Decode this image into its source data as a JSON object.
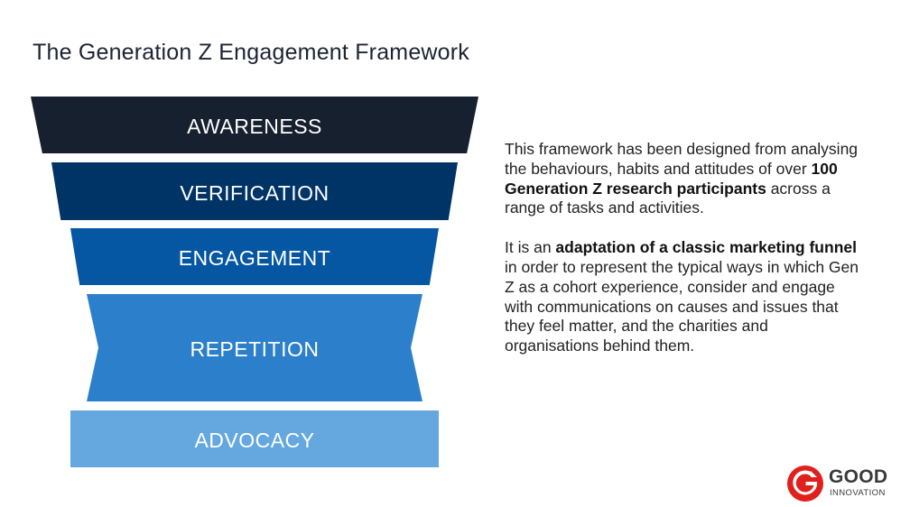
{
  "title": "The Generation Z Engagement Framework",
  "funnel": {
    "stages": [
      {
        "label": "AWARENESS",
        "color": "#17202e"
      },
      {
        "label": "VERIFICATION",
        "color": "#003466"
      },
      {
        "label": "ENGAGEMENT",
        "color": "#0556a3"
      },
      {
        "label": "REPETITION",
        "color": "#2b7fcb"
      },
      {
        "label": "ADVOCACY",
        "color": "#64a8df"
      }
    ]
  },
  "description": {
    "p1": {
      "before": "This framework has been designed from analysing the behaviours, habits and attitudes of over ",
      "bold": "100 Generation Z research participants",
      "after": " across a range of tasks and activities."
    },
    "p2": {
      "before": "It is an ",
      "bold": "adaptation of a classic marketing funnel",
      "after": " in order to represent the typical ways in which Gen Z as a cohort experience, consider and engage with communications on causes and issues that they feel matter, and the charities and organisations behind them."
    }
  },
  "logo": {
    "word": "GOOD",
    "sub": "INNOVATION",
    "color": "#e0201b",
    "icon": "good-innovation-g-icon"
  }
}
